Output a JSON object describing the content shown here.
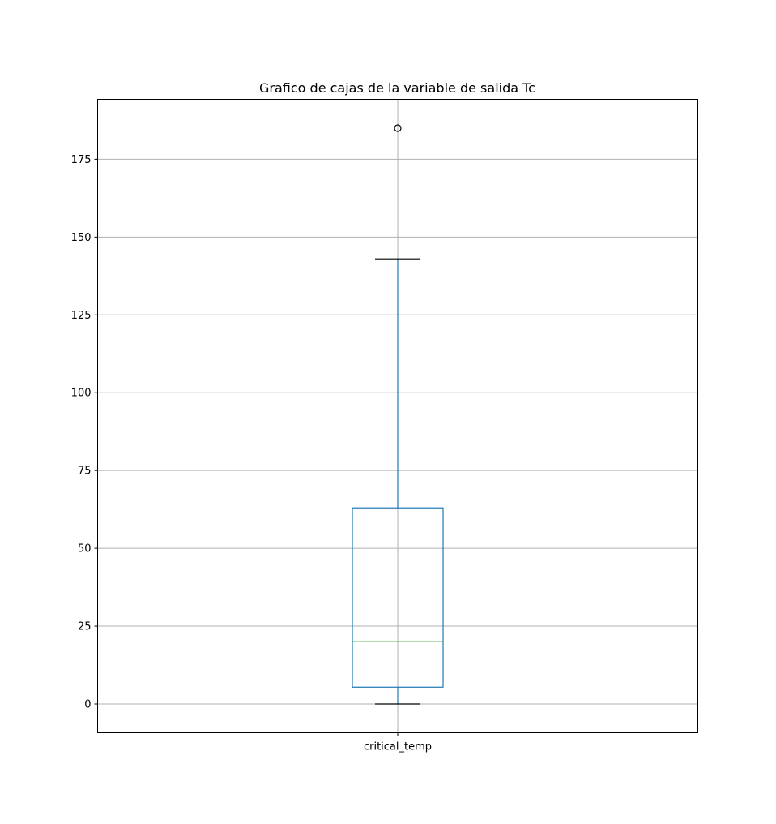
{
  "chart_data": {
    "type": "box",
    "title": "Grafico de cajas de la variable de salida Tc",
    "xlabel": "",
    "ylabel": "",
    "categories": [
      "critical_temp"
    ],
    "boxes": [
      {
        "name": "critical_temp",
        "whisker_low": 0.0,
        "q1": 5.4,
        "median": 20.0,
        "q3": 63.0,
        "whisker_high": 143.0,
        "outliers": [
          185.0
        ]
      }
    ],
    "ylim": [
      -9.25,
      194.25
    ],
    "yticks": [
      0,
      25,
      50,
      75,
      100,
      125,
      150,
      175
    ],
    "grid": true,
    "colors": {
      "box": "#1f77b4",
      "whisker": "#1f77b4",
      "cap": "#000000",
      "median": "#2ca02c",
      "outlier": "#000000",
      "grid": "#b0b0b0",
      "frame": "#000000"
    }
  }
}
